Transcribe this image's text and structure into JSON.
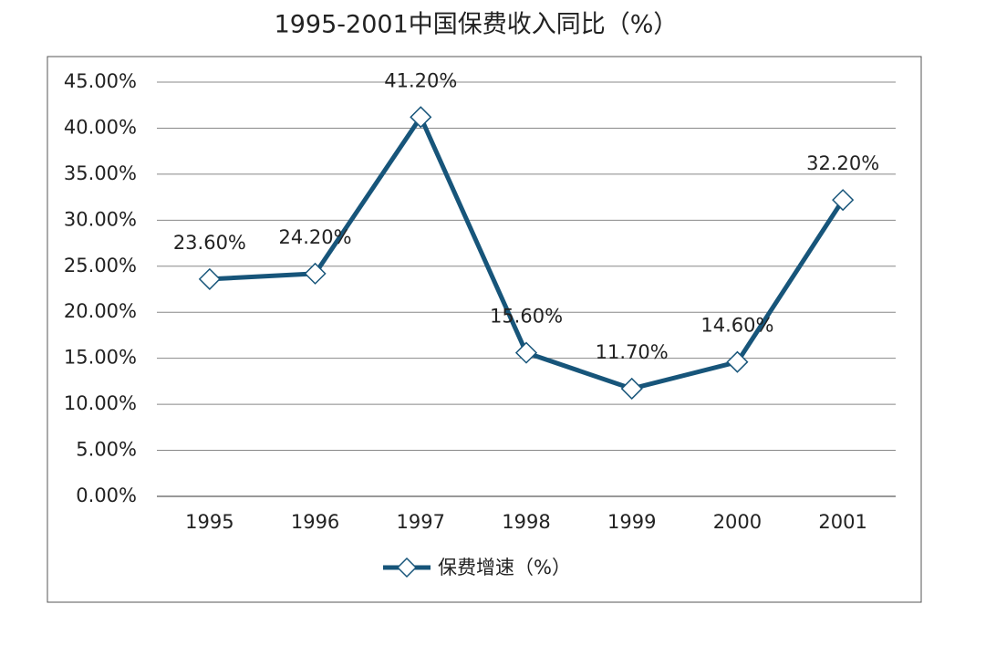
{
  "chart_data": {
    "type": "line",
    "title": "1995-2001中国保费收入同比（%）",
    "categories": [
      "1995",
      "1996",
      "1997",
      "1998",
      "1999",
      "2000",
      "2001"
    ],
    "series": [
      {
        "name": "保费增速（%）",
        "color": "#17557a",
        "values": [
          23.6,
          24.2,
          41.2,
          15.6,
          11.7,
          14.6,
          32.2
        ],
        "value_labels": [
          "23.60%",
          "24.20%",
          "41.20%",
          "15.60%",
          "11.70%",
          "14.60%",
          "32.20%"
        ]
      }
    ],
    "ylim": [
      0,
      45
    ],
    "yticks": [
      {
        "value": 0,
        "label": "0.00%"
      },
      {
        "value": 5,
        "label": "5.00%"
      },
      {
        "value": 10,
        "label": "10.00%"
      },
      {
        "value": 15,
        "label": "15.00%"
      },
      {
        "value": 20,
        "label": "20.00%"
      },
      {
        "value": 25,
        "label": "25.00%"
      },
      {
        "value": 30,
        "label": "30.00%"
      },
      {
        "value": 35,
        "label": "35.00%"
      },
      {
        "value": 40,
        "label": "40.00%"
      },
      {
        "value": 45,
        "label": "45.00%"
      }
    ],
    "grid": true,
    "legend": "bottom"
  }
}
